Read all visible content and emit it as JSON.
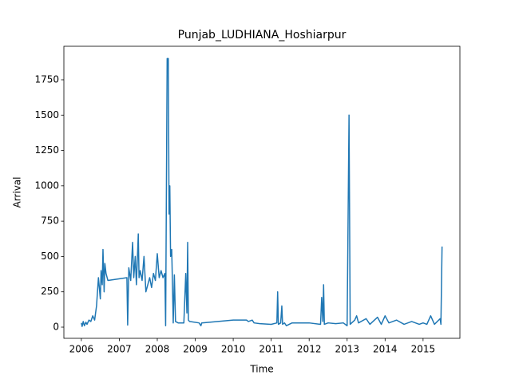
{
  "chart_data": {
    "type": "line",
    "title": "Punjab_LUDHIANA_Hoshiarpur",
    "x_label": "Time",
    "y_label": "Arrival",
    "x": [
      2006.0,
      2006.02,
      2006.05,
      2006.08,
      2006.12,
      2006.15,
      2006.2,
      2006.25,
      2006.3,
      2006.35,
      2006.4,
      2006.45,
      2006.5,
      2006.52,
      2006.55,
      2006.57,
      2006.6,
      2006.62,
      2006.65,
      2006.7,
      2007.2,
      2007.22,
      2007.25,
      2007.3,
      2007.35,
      2007.38,
      2007.42,
      2007.45,
      2007.5,
      2007.52,
      2007.55,
      2007.6,
      2007.65,
      2007.7,
      2007.75,
      2007.8,
      2007.85,
      2007.9,
      2007.95,
      2008.0,
      2008.05,
      2008.1,
      2008.15,
      2008.2,
      2008.22,
      2008.26,
      2008.29,
      2008.31,
      2008.33,
      2008.35,
      2008.38,
      2008.4,
      2008.42,
      2008.45,
      2008.48,
      2008.55,
      2008.7,
      2008.75,
      2008.78,
      2008.8,
      2008.82,
      2008.85,
      2009.1,
      2009.15,
      2009.17,
      2009.4,
      2010.0,
      2010.35,
      2010.4,
      2010.5,
      2010.55,
      2010.7,
      2011.0,
      2011.15,
      2011.17,
      2011.19,
      2011.25,
      2011.28,
      2011.3,
      2011.35,
      2011.4,
      2011.55,
      2012.0,
      2012.3,
      2012.33,
      2012.36,
      2012.38,
      2012.4,
      2012.5,
      2012.7,
      2012.9,
      2013.0,
      2013.05,
      2013.08,
      2013.2,
      2013.25,
      2013.3,
      2013.5,
      2013.6,
      2013.8,
      2013.9,
      2014.0,
      2014.1,
      2014.3,
      2014.5,
      2014.7,
      2014.9,
      2015.0,
      2015.1,
      2015.2,
      2015.3,
      2015.45,
      2015.47,
      2015.5
    ],
    "series": [
      {
        "color": "#1f77b4",
        "values": [
          30,
          5,
          40,
          10,
          35,
          20,
          50,
          40,
          80,
          50,
          150,
          350,
          200,
          400,
          300,
          550,
          250,
          450,
          380,
          330,
          350,
          15,
          420,
          330,
          600,
          350,
          500,
          300,
          660,
          350,
          400,
          330,
          500,
          250,
          300,
          350,
          280,
          380,
          330,
          520,
          350,
          400,
          350,
          380,
          10,
          1900,
          1900,
          800,
          1000,
          500,
          550,
          300,
          30,
          370,
          40,
          30,
          30,
          380,
          100,
          600,
          50,
          40,
          30,
          10,
          30,
          35,
          50,
          50,
          40,
          50,
          30,
          25,
          20,
          30,
          250,
          20,
          30,
          150,
          20,
          30,
          10,
          30,
          30,
          20,
          210,
          40,
          300,
          20,
          30,
          25,
          30,
          10,
          1500,
          20,
          50,
          80,
          30,
          60,
          20,
          70,
          20,
          80,
          30,
          50,
          20,
          40,
          20,
          30,
          20,
          80,
          20,
          60,
          20,
          570
        ]
      }
    ],
    "xlim": [
      2005.54,
      2015.97
    ],
    "xticks": [
      2006,
      2007,
      2008,
      2009,
      2010,
      2011,
      2012,
      2013,
      2014,
      2015
    ],
    "ylim": [
      -79,
      1987
    ],
    "yticks": [
      0,
      250,
      500,
      750,
      1000,
      1250,
      1500,
      1750
    ]
  }
}
